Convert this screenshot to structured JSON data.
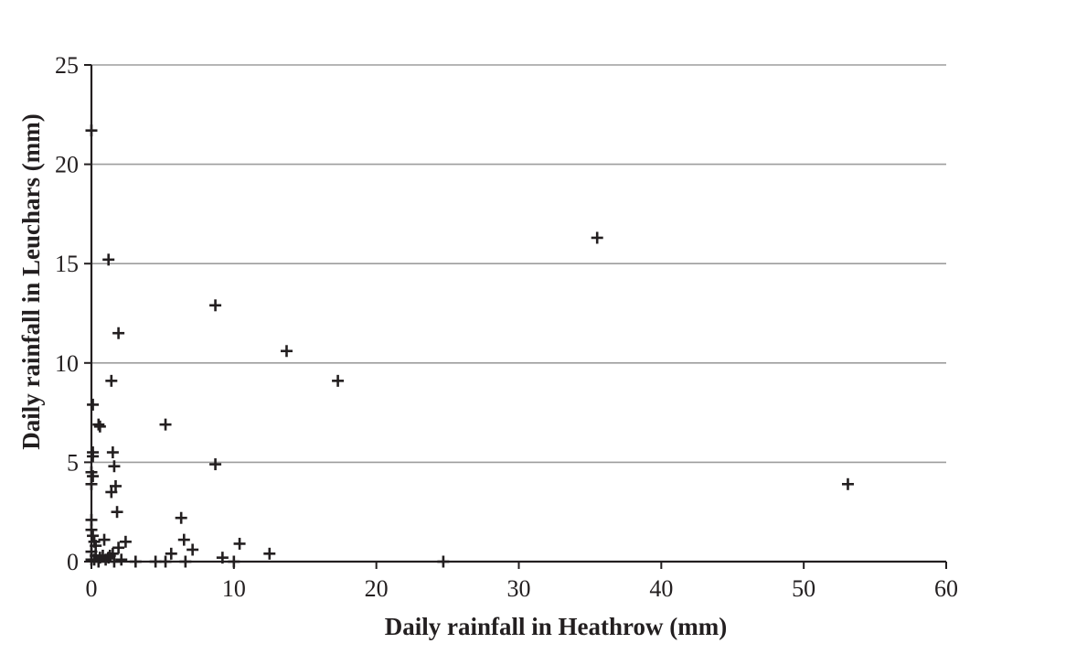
{
  "chart_data": {
    "type": "scatter",
    "title": "",
    "xlabel": "Daily rainfall in Heathrow (mm)",
    "ylabel": "Daily rainfall in Leuchars (mm)",
    "xlim": [
      0,
      60
    ],
    "ylim": [
      0,
      25
    ],
    "xticks": [
      0,
      10,
      20,
      30,
      40,
      50,
      60
    ],
    "yticks": [
      0,
      5,
      10,
      15,
      20,
      25
    ],
    "xtick_labels": [
      "0",
      "10",
      "20",
      "30",
      "40",
      "50",
      "60"
    ],
    "ytick_labels": [
      "0",
      "5",
      "10",
      "15",
      "20",
      "25"
    ],
    "grid": "horizontal",
    "marker": "plus",
    "colors": {
      "marker": "#231f20",
      "grid": "#9d9d9d",
      "axis": "#231f20"
    },
    "points": [
      [
        0.0,
        21.7
      ],
      [
        1.2,
        15.2
      ],
      [
        35.5,
        16.3
      ],
      [
        8.7,
        12.9
      ],
      [
        1.9,
        11.5
      ],
      [
        13.7,
        10.6
      ],
      [
        1.4,
        9.1
      ],
      [
        17.3,
        9.1
      ],
      [
        0.1,
        7.9
      ],
      [
        0.5,
        6.9
      ],
      [
        0.6,
        6.8
      ],
      [
        5.2,
        6.9
      ],
      [
        0.1,
        5.5
      ],
      [
        0.1,
        5.3
      ],
      [
        1.5,
        5.5
      ],
      [
        8.7,
        4.9
      ],
      [
        1.6,
        4.8
      ],
      [
        0.0,
        4.5
      ],
      [
        0.1,
        4.3
      ],
      [
        0.0,
        3.9
      ],
      [
        1.7,
        3.8
      ],
      [
        1.4,
        3.5
      ],
      [
        53.1,
        3.9
      ],
      [
        1.8,
        2.5
      ],
      [
        6.3,
        2.2
      ],
      [
        0.0,
        2.1
      ],
      [
        0.0,
        1.6
      ],
      [
        0.1,
        1.3
      ],
      [
        0.2,
        1.0
      ],
      [
        0.9,
        1.1
      ],
      [
        2.4,
        1.0
      ],
      [
        6.5,
        1.1
      ],
      [
        10.4,
        0.9
      ],
      [
        0.3,
        0.8
      ],
      [
        1.9,
        0.7
      ],
      [
        0.0,
        0.5
      ],
      [
        7.1,
        0.6
      ],
      [
        1.5,
        0.4
      ],
      [
        5.6,
        0.4
      ],
      [
        12.5,
        0.4
      ],
      [
        0.3,
        0.3
      ],
      [
        0.8,
        0.3
      ],
      [
        1.2,
        0.2
      ],
      [
        2.1,
        0.1
      ],
      [
        9.2,
        0.2
      ],
      [
        0.0,
        0.1
      ],
      [
        0.5,
        0.0
      ],
      [
        1.0,
        0.1
      ],
      [
        1.6,
        0.0
      ],
      [
        3.1,
        0.0
      ],
      [
        4.5,
        0.0
      ],
      [
        5.2,
        0.0
      ],
      [
        6.6,
        0.0
      ],
      [
        10.0,
        0.0
      ],
      [
        24.7,
        0.0
      ],
      [
        0.2,
        0.1
      ],
      [
        0.6,
        0.2
      ],
      [
        1.3,
        0.3
      ]
    ]
  }
}
